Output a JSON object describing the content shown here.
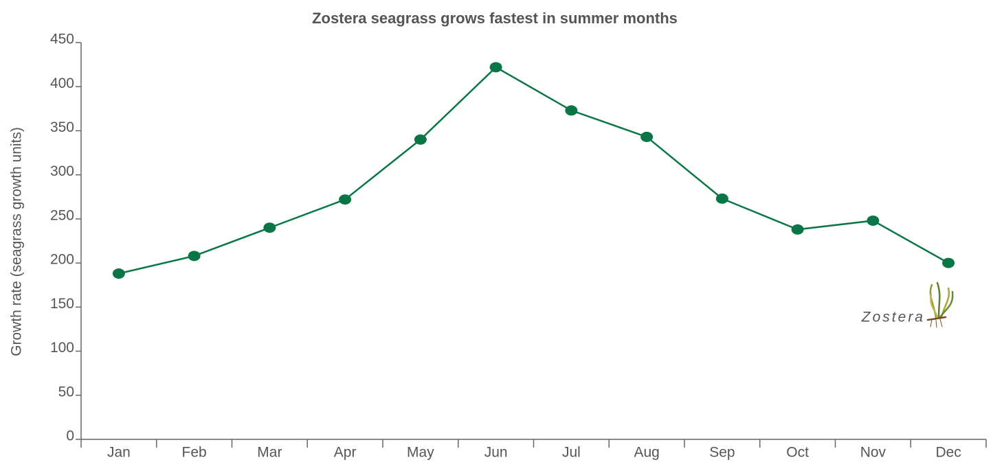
{
  "chart_data": {
    "type": "line",
    "title": "Zostera seagrass grows fastest in summer months",
    "y_label": "Growth rate (seagrass growth units)",
    "annotation": "Zostera",
    "categories": [
      "Jan",
      "Feb",
      "Mar",
      "Apr",
      "May",
      "Jun",
      "Jul",
      "Aug",
      "Sep",
      "Oct",
      "Nov",
      "Dec"
    ],
    "values": [
      188,
      208,
      240,
      272,
      340,
      422,
      373,
      343,
      273,
      238,
      248,
      200
    ],
    "color": "#0b7645",
    "ylim": [
      0,
      450
    ],
    "yticks": [
      0,
      50,
      100,
      150,
      200,
      250,
      300,
      350,
      400,
      450
    ],
    "grid": false
  }
}
